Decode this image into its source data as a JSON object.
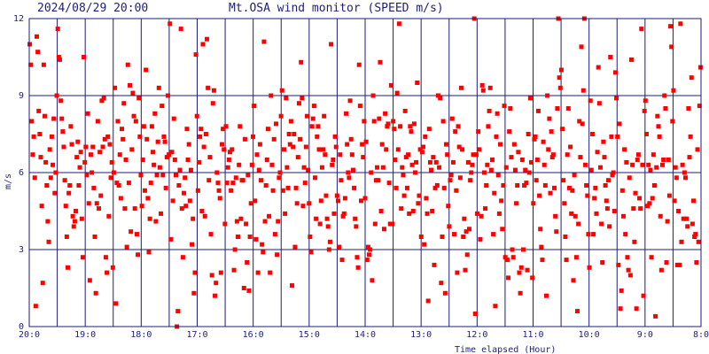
{
  "chart_data": {
    "type": "scatter",
    "title_date": "2024/08/29 20:00",
    "title": "Mt.OSA wind monitor (SPEED m/s)",
    "xlabel": "Time elapsed (Hour)",
    "ylabel": "m/s",
    "x_ticks": [
      "20:0",
      "19:0",
      "18:0",
      "17:0",
      "16:0",
      "15:0",
      "14:0",
      "13:0",
      "12:0",
      "11:0",
      "10:0",
      "9:0",
      "8:0"
    ],
    "y_ticks": [
      "0",
      "3",
      "6",
      "9",
      "12"
    ],
    "ylim": [
      0,
      12
    ],
    "xlim_hours": [
      0,
      12
    ],
    "grid": true,
    "colors": {
      "axes": "#1e1e78",
      "grid": "#1e1e78",
      "points": "#ff0000"
    },
    "points_note": "speed samples every few minutes; x = hours elapsed from 20:00 backwards (0..12)",
    "values": [
      11.0,
      10.2,
      8.0,
      6.7,
      7.4,
      5.8,
      0.8,
      11.3,
      10.7,
      8.4,
      7.5,
      6.6,
      4.7,
      1.7,
      10.2,
      8.2,
      6.4,
      5.5,
      4.1,
      3.3,
      6.9,
      5.8,
      7.4,
      6.3,
      8.1,
      5.2,
      6.0,
      9.0,
      11.6,
      10.5,
      10.4,
      8.8,
      8.1,
      7.6,
      7.0,
      5.7,
      4.7,
      3.5,
      2.3,
      5.2,
      5.5,
      7.8,
      7.1,
      4.3,
      3.9,
      4.1,
      4.5,
      6.6,
      7.2,
      5.5,
      6.2,
      6.8,
      4.2,
      2.7,
      10.5,
      6.4,
      7.0,
      5.9,
      8.3,
      4.8,
      1.8,
      6.7,
      6.0,
      7.0,
      5.4,
      3.5,
      1.3,
      4.8,
      8.0,
      4.6,
      6.8,
      5.1,
      8.8,
      7.0,
      8.9,
      7.3,
      2.7,
      2.1,
      7.4,
      4.3,
      7.1,
      5.8,
      6.4,
      2.3,
      6.0,
      9.3,
      0.9,
      5.6,
      8.0,
      5.5,
      6.7,
      5.0,
      7.7,
      7.3,
      8.7,
      4.6,
      6.5,
      3.1,
      10.2,
      5.6,
      9.4,
      3.7,
      6.9,
      9.1,
      8.2,
      4.6,
      8.0,
      3.6,
      2.8,
      8.9,
      7.4,
      5.9,
      4.7,
      6.5,
      7.8,
      5.3,
      10.0,
      7.3,
      5.0,
      2.9,
      4.2,
      5.6,
      7.8,
      6.8,
      6.3,
      8.3,
      4.1,
      5.9,
      7.2,
      9.3,
      6.2,
      4.4,
      8.6,
      5.9,
      7.4,
      7.2,
      5.4,
      6.6,
      9.0,
      6.7,
      11.8,
      3.4,
      6.8,
      4.9,
      8.1,
      6.5,
      5.9,
      0.0,
      0.6,
      5.5,
      6.1,
      11.6,
      4.6,
      2.7,
      5.2,
      5.8,
      4.7,
      7.7,
      6.5,
      7.1,
      4.9,
      6.1,
      3.2,
      4.2,
      1.3,
      2.1,
      10.6,
      8.2,
      5.3,
      6.4,
      7.4,
      7.7,
      4.5,
      11.0,
      7.0,
      4.3,
      7.5,
      11.2,
      9.3,
      5.7,
      6.6,
      3.6,
      2.0,
      8.7,
      9.2,
      1.2,
      1.7,
      6.0,
      5.6,
      5.3,
      5.0,
      2.1,
      7.1,
      7.7,
      6.9,
      4.0,
      7.8,
      5.6,
      6.2,
      6.5,
      6.8,
      5.3,
      6.9,
      5.6,
      2.2,
      3.0,
      5.8,
      4.1,
      3.5,
      6.3,
      7.8,
      4.2,
      5.7,
      5.7,
      1.5,
      7.3,
      4.0,
      2.5,
      5.9,
      1.4,
      3.5,
      4.8,
      6.3,
      7.4,
      8.6,
      4.9,
      3.4,
      6.7,
      2.1,
      6.1,
      7.1,
      5.7,
      3.2,
      2.9,
      11.1,
      4.1,
      5.5,
      6.5,
      7.7,
      4.3,
      2.1,
      9.0,
      6.3,
      5.3,
      7.3,
      3.6,
      7.9,
      2.8,
      4.1,
      5.8,
      6.0,
      8.2,
      9.2,
      5.3,
      6.9,
      4.4,
      8.9,
      6.2,
      5.4,
      7.5,
      7.1,
      8.0,
      1.6,
      7.0,
      7.5,
      3.1,
      5.4,
      4.8,
      6.6,
      8.7,
      7.3,
      10.3,
      8.9,
      4.7,
      6.2,
      5.6,
      7.0,
      8.2,
      6.1,
      4.8,
      3.5,
      2.9,
      7.8,
      8.1,
      8.6,
      5.8,
      4.2,
      7.4,
      7.8,
      6.9,
      4.0,
      4.9,
      6.2,
      6.9,
      8.2,
      6.7,
      5.1,
      4.2,
      3.9,
      3.0,
      3.3,
      11.0,
      6.3,
      6.5,
      4.4,
      7.4,
      7.0,
      5.1,
      4.9,
      3.1,
      6.7,
      5.7,
      2.6,
      4.3,
      4.4,
      5.0,
      8.3,
      7.1,
      6.0,
      5.8,
      8.8,
      7.3,
      6.7,
      6.1,
      5.4,
      4.2,
      3.9,
      2.7,
      2.3,
      10.2,
      8.6,
      4.9,
      7.1,
      6.6,
      8.0,
      5.0,
      7.2,
      2.6,
      3.1,
      2.8,
      3.0,
      6.0,
      1.8,
      9.0,
      8.0,
      4.0,
      5.7,
      6.2,
      5.7,
      8.1,
      10.3,
      4.5,
      7.1,
      6.2,
      3.8,
      8.3,
      6.9,
      7.8,
      7.9,
      5.6,
      4.0,
      9.4,
      4.0,
      8.0,
      7.7,
      6.5,
      5.4,
      9.1,
      6.9,
      11.8,
      7.8,
      4.6,
      6.2,
      5.9,
      5.1,
      8.4,
      6.6,
      5.4,
      6.7,
      4.4,
      7.8,
      7.6,
      6.3,
      4.5,
      7.9,
      6.0,
      6.4,
      9.5,
      4.8,
      5.1,
      6.9,
      3.5,
      6.8,
      7.0,
      3.2,
      7.4,
      5.0,
      4.4,
      1.0,
      7.7,
      6.4,
      6.1,
      4.5,
      6.6,
      2.4,
      5.4,
      6.4,
      5.5,
      9.0,
      6.2,
      8.9,
      1.7,
      3.5,
      8.0,
      5.4,
      1.3,
      7.1,
      6.7,
      4.7,
      3.9,
      5.7,
      5.9,
      8.1,
      6.4,
      3.6,
      7.6,
      5.3,
      2.1,
      7.8,
      7.0,
      5.8,
      9.3,
      6.9,
      3.5,
      4.2,
      2.2,
      3.7,
      2.8,
      6.4,
      3.8,
      5.7,
      6.0,
      6.3,
      6.7,
      12.0,
      0.5,
      6.7,
      4.4,
      7.6,
      6.9,
      3.4,
      4.3,
      9.4,
      9.2,
      6.0,
      4.6,
      5.5,
      6.3,
      7.8,
      8.4,
      9.3,
      6.1,
      6.5,
      3.6,
      5.2,
      0.8,
      7.4,
      8.3,
      5.9,
      4.4,
      7.1,
      4.9,
      3.8,
      5.5,
      8.6,
      2.7,
      6.2,
      2.6,
      1.9,
      7.6,
      8.5,
      6.6,
      3.0,
      2.7,
      7.1,
      6.1,
      4.8,
      5.5,
      6.8,
      2.1,
      1.3,
      2.3,
      6.5,
      3.0,
      5.5,
      6.1,
      5.6,
      2.2,
      7.5,
      6.0,
      8.9,
      6.4,
      1.9,
      4.8,
      7.3,
      7.4,
      5.7,
      6.5,
      8.4,
      5.1,
      3.8,
      3.1,
      2.6,
      7.2,
      6.3,
      5.5,
      1.2,
      9.0,
      6.9,
      8.1,
      5.2,
      7.6,
      6.6,
      6.7,
      5.4,
      4.3,
      3.7,
      8.5,
      12.4,
      9.7,
      9.3,
      10.0,
      7.7,
      5.7,
      4.8,
      3.5,
      2.6,
      6.7,
      8.5,
      5.4,
      7.0,
      4.4,
      5.3,
      1.8,
      5.9,
      4.3,
      2.7,
      0.6,
      4.0,
      8.0,
      6.6,
      10.9,
      7.9,
      9.2,
      12.2,
      6.3,
      5.5,
      5.1,
      3.6,
      2.3,
      8.8,
      6.1,
      7.5,
      3.6,
      5.0,
      5.4,
      4.4,
      6.8,
      10.1,
      8.7,
      6.2,
      4.0,
      2.5,
      7.2,
      6.6,
      5.5,
      4.9,
      4.6,
      5.7,
      3.9,
      10.5,
      7.4,
      5.9,
      6.0,
      4.5,
      9.9,
      8.9,
      7.4,
      2.4,
      7.9,
      0.7,
      1.4,
      5.3,
      4.3,
      6.9,
      3.6,
      6.4,
      2.7,
      2.2,
      5.8,
      2.0,
      10.4,
      6.3,
      4.6,
      3.3,
      5.2,
      0.7,
      6.5,
      6.7,
      5.0,
      4.6,
      11.6,
      6.3,
      1.2,
      8.4,
      8.8,
      7.5,
      4.7,
      6.3,
      4.8,
      6.1,
      2.7,
      5.0,
      6.7,
      5.5,
      0.4,
      6.2,
      8.2,
      7.8,
      7.4,
      4.3,
      2.2,
      6.3,
      6.5,
      9.0,
      8.5,
      2.5,
      4.1,
      6.5,
      5.1,
      11.7,
      10.9,
      8.0,
      9.2,
      4.9,
      6.2,
      5.8,
      2.4,
      4.5,
      2.4,
      11.8,
      3.3,
      6.3,
      4.2,
      6.0,
      5.8,
      4.2,
      3.9,
      8.5,
      6.6,
      7.4,
      9.7,
      4.0,
      4.9,
      3.5,
      3.6,
      2.5,
      6.9,
      3.3,
      8.6,
      10.1
    ]
  }
}
